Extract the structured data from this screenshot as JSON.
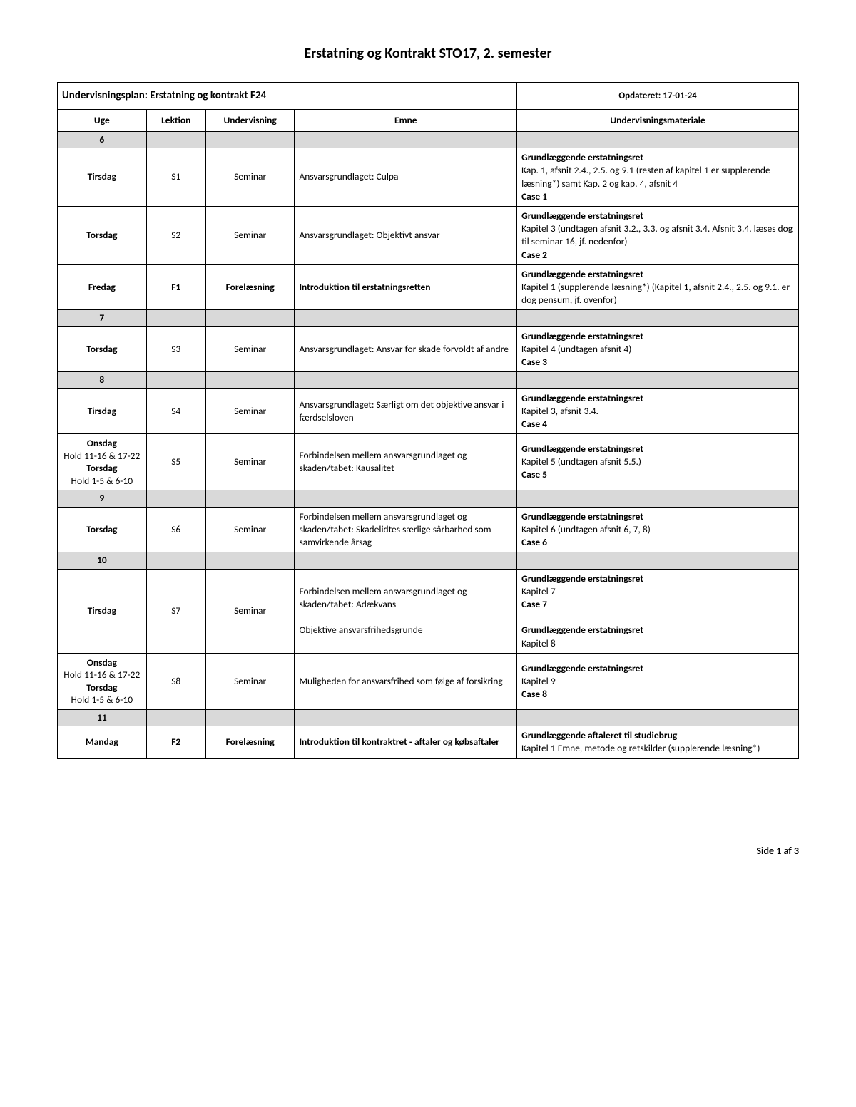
{
  "page_title": "Erstatning og Kontrakt STO17, 2. semester",
  "plan_title": "Undervisningsplan: Erstatning og kontrakt F24",
  "updated_label": "Opdateret: 17-01-24",
  "columns": {
    "uge": "Uge",
    "lektion": "Lektion",
    "undervisning": "Undervisning",
    "emne": "Emne",
    "materiale": "Undervisningsmateriale"
  },
  "col_widths": {
    "uge": "12%",
    "lektion": "8%",
    "undervisning": "12%",
    "emne": "30%",
    "materiale": "38%"
  },
  "weeks": {
    "w6": "6",
    "w7": "7",
    "w8": "8",
    "w9": "9",
    "w10": "10",
    "w11": "11"
  },
  "rows": {
    "r1": {
      "uge": "Tirsdag",
      "lektion": "S1",
      "undervisning": "Seminar",
      "emne": "Ansvarsgrundlaget: Culpa",
      "mat_bold": "Grundlæggende erstatningsret",
      "mat_text": "Kap. 1, afsnit 2.4., 2.5. og 9.1 (resten af kapitel 1 er supplerende læsning*) samt Kap. 2 og kap. 4, afsnit 4",
      "mat_case": "Case 1"
    },
    "r2": {
      "uge": "Torsdag",
      "lektion": "S2",
      "undervisning": "Seminar",
      "emne": "Ansvarsgrundlaget: Objektivt ansvar",
      "mat_bold": "Grundlæggende erstatningsret",
      "mat_text": "Kapitel 3 (undtagen afsnit 3.2., 3.3. og afsnit 3.4. Afsnit 3.4. læses dog til seminar 16, jf. nedenfor)",
      "mat_case": "Case 2"
    },
    "r3": {
      "uge": "Fredag",
      "lektion": "F1",
      "undervisning": "Forelæsning",
      "emne": "Introduktion til erstatningsretten",
      "mat_bold": "Grundlæggende erstatningsret",
      "mat_text": "Kapitel 1 (supplerende læsning*) (Kapitel 1, afsnit 2.4., 2.5. og 9.1. er dog pensum, jf. ovenfor)"
    },
    "r4": {
      "uge": "Torsdag",
      "lektion": "S3",
      "undervisning": "Seminar",
      "emne": "Ansvarsgrundlaget: Ansvar for skade forvoldt af andre",
      "mat_bold": "Grundlæggende erstatningsret",
      "mat_text": "Kapitel 4 (undtagen afsnit 4)",
      "mat_case": "Case 3"
    },
    "r5": {
      "uge": "Tirsdag",
      "lektion": "S4",
      "undervisning": "Seminar",
      "emne": "Ansvarsgrundlaget: Særligt om det objektive ansvar i færdselsloven",
      "mat_bold": "Grundlæggende erstatningsret",
      "mat_text": "Kapitel 3, afsnit 3.4.",
      "mat_case": "Case 4"
    },
    "r6": {
      "uge_l1": "Onsdag",
      "uge_l2": "Hold 11-16 & 17-22",
      "uge_l3": "Torsdag",
      "uge_l4": "Hold 1-5 & 6-10",
      "lektion": "S5",
      "undervisning": "Seminar",
      "emne": "Forbindelsen mellem ansvarsgrundlaget og skaden/tabet: Kausalitet",
      "mat_bold": "Grundlæggende  erstatningsret",
      "mat_text": "Kapitel 5 (undtagen afsnit 5.5.)",
      "mat_case": "Case 5"
    },
    "r7": {
      "uge": "Torsdag",
      "lektion": "S6",
      "undervisning": "Seminar",
      "emne": "Forbindelsen mellem ansvarsgrundlaget og skaden/tabet: Skadelidtes særlige sårbarhed som samvirkende årsag",
      "mat_bold": "Grundlæggende erstatningsret",
      "mat_text": "Kapitel 6 (undtagen afsnit 6, 7, 8)",
      "mat_case": "Case 6"
    },
    "r8": {
      "uge": "Tirsdag",
      "lektion": "S7",
      "undervisning": "Seminar",
      "emne_l1": "Forbindelsen mellem ansvarsgrundlaget og skaden/tabet: Adækvans",
      "emne_l2": "Objektive ansvarsfrihedsgrunde",
      "mat_bold1": "Grundlæggende erstatningsret",
      "mat_text1": "Kapitel 7",
      "mat_case1": "Case 7",
      "mat_bold2": "Grundlæggende erstatningsret",
      "mat_text2": "Kapitel 8"
    },
    "r9": {
      "uge_l1": "Onsdag",
      "uge_l2": "Hold 11-16 & 17-22",
      "uge_l3": "Torsdag",
      "uge_l4": "Hold 1-5 & 6-10",
      "lektion": "S8",
      "undervisning": "Seminar",
      "emne": "Muligheden for ansvarsfrihed som følge af forsikring",
      "mat_bold": "Grundlæggende erstatningsret",
      "mat_text": "Kapitel 9",
      "mat_case": "Case 8"
    },
    "r10": {
      "uge": "Mandag",
      "lektion": "F2",
      "undervisning": "Forelæsning",
      "emne": "Introduktion til kontraktret - aftaler og købsaftaler",
      "mat_bold": "Grundlæggende aftaleret til studiebrug",
      "mat_text": "Kapitel 1 Emne, metode og retskilder (supplerende læsning*)"
    }
  },
  "footer": "Side 1 af 3"
}
